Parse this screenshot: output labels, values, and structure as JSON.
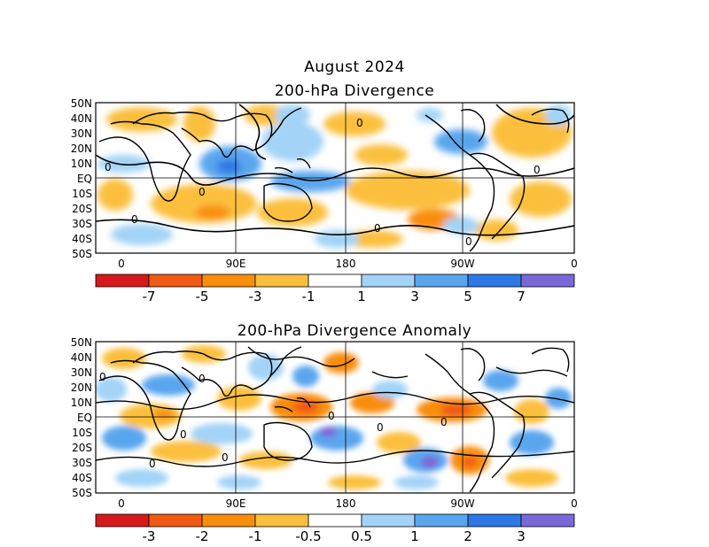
{
  "figure": {
    "title_line1": "August 2024",
    "title_line2": "200-hPa Divergence"
  },
  "panel_anomaly": {
    "title": "200-hPa Divergence Anomaly"
  },
  "axes": {
    "lat_labels": [
      "50N",
      "40N",
      "30N",
      "20N",
      "10N",
      "EQ",
      "10S",
      "20S",
      "30S",
      "40S",
      "50S"
    ],
    "lon_labels": [
      "0",
      "90E",
      "180",
      "90W",
      "0"
    ]
  },
  "colorbar_divergence": {
    "colors": [
      "#d7191c",
      "#f05a12",
      "#f98e0c",
      "#fbbf3c",
      "#ffffff",
      "#a3d3f7",
      "#5aa6ee",
      "#2d78e6",
      "#7b68d8"
    ],
    "labels": [
      "-7",
      "-5",
      "-3",
      "-1",
      "1",
      "3",
      "5",
      "7"
    ]
  },
  "colorbar_anomaly": {
    "colors": [
      "#d7191c",
      "#f05a12",
      "#f98e0c",
      "#fbbf3c",
      "#ffffff",
      "#a3d3f7",
      "#5aa6ee",
      "#2d78e6",
      "#7b68d8"
    ],
    "labels": [
      "-3",
      "-2",
      "-1",
      "-0.5",
      "0.5",
      "1",
      "2",
      "3"
    ]
  },
  "contour_zero_label": "0"
}
